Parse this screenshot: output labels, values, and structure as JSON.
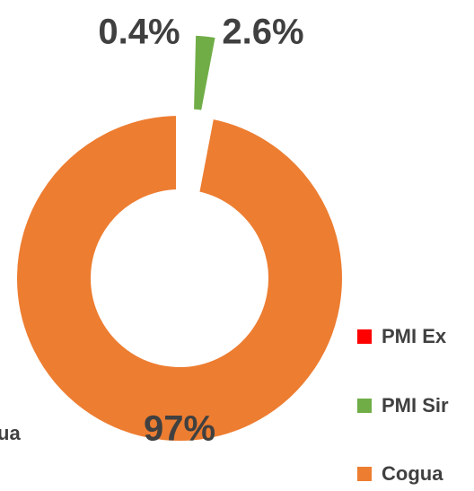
{
  "chart_data": {
    "type": "donut",
    "categories": [
      "PMI Ex",
      "PMI Sir",
      "Cogua"
    ],
    "values": [
      0.4,
      2.6,
      97
    ],
    "value_labels": [
      "0.4%",
      "2.6%",
      "97%"
    ],
    "colors": [
      "#ff0000",
      "#70ad47",
      "#ed7d31"
    ],
    "annotations": [
      "ua"
    ]
  }
}
